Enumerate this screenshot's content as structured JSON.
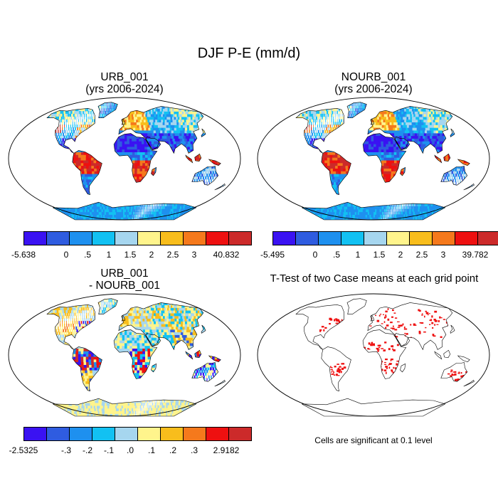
{
  "figure_title": "DJF P-E (mm/d)",
  "panels": [
    {
      "id": "urb",
      "title_line1": "URB_001",
      "title_line2": "(yrs 2006-2024)"
    },
    {
      "id": "nourb",
      "title_line1": "NOURB_001",
      "title_line2": "(yrs 2006-2024)"
    },
    {
      "id": "diff",
      "title_line1": "URB_001",
      "title_line2": "- NOURB_001"
    },
    {
      "id": "ttest",
      "title_line1": "T-Test of two Case means at each grid point",
      "title_line2": ""
    }
  ],
  "colorbars": {
    "urb": {
      "colors": [
        "#3a12f2",
        "#2f5ce0",
        "#1e90ef",
        "#12c1f2",
        "#a6d6ef",
        "#fff48c",
        "#f8bd1c",
        "#f5791c",
        "#ee1010",
        "#cc2a2a"
      ],
      "min_label": "-5.638",
      "ticks": [
        "0",
        ".5",
        "1",
        "1.5",
        "2",
        "2.5",
        "3"
      ],
      "max_label": "40.832"
    },
    "nourb": {
      "colors": [
        "#3a12f2",
        "#2f5ce0",
        "#1e90ef",
        "#12c1f2",
        "#a6d6ef",
        "#fff48c",
        "#f8bd1c",
        "#f5791c",
        "#ee1010",
        "#cc2a2a"
      ],
      "min_label": "-5.495",
      "ticks": [
        "0",
        ".5",
        "1",
        "1.5",
        "2",
        "2.5",
        "3"
      ],
      "max_label": "39.782"
    },
    "diff": {
      "colors": [
        "#3a12f2",
        "#2f5ce0",
        "#1e90ef",
        "#12c1f2",
        "#a6d6ef",
        "#fff48c",
        "#f8bd1c",
        "#f5791c",
        "#ee1010",
        "#cc2a2a"
      ],
      "min_label": "-2.5325",
      "ticks": [
        "-.3",
        "-.2",
        "-.1",
        ".0",
        ".1",
        ".2",
        ".3"
      ],
      "max_label": "2.9182"
    }
  },
  "significance_color": "#ee1010",
  "footnote": "Cells are significant at 0.1 level"
}
